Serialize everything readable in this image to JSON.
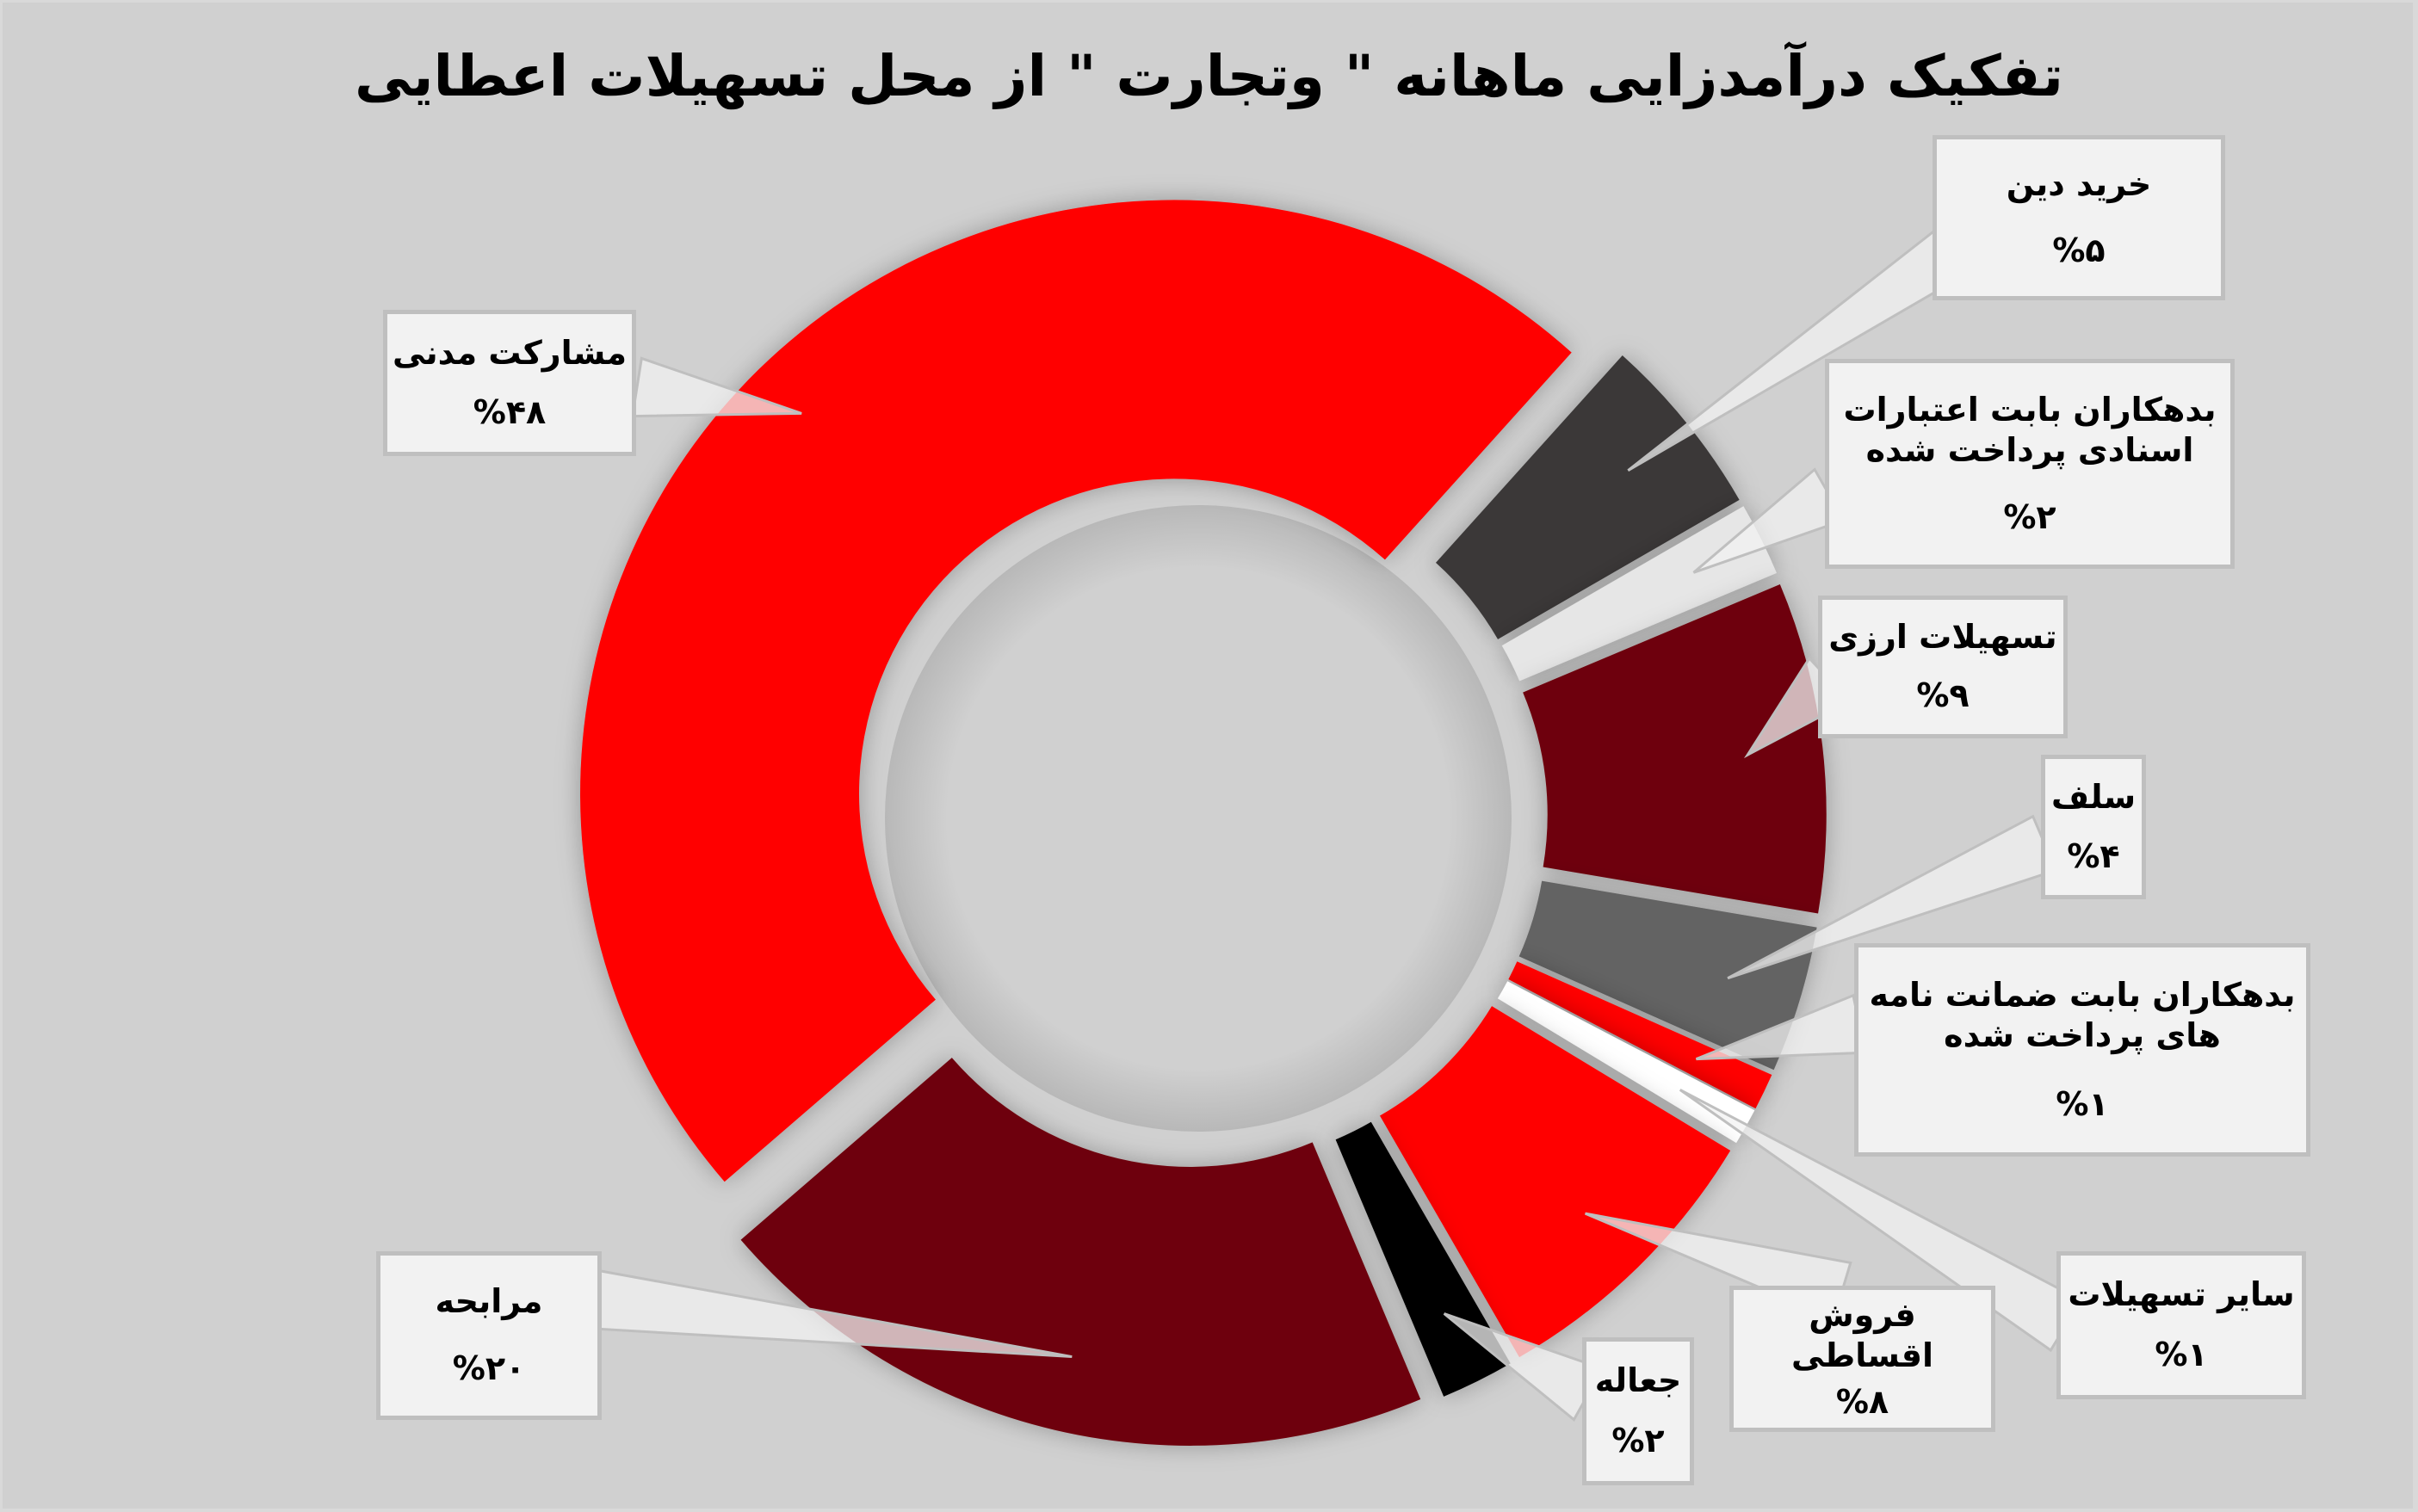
{
  "title": "تفکیک درآمدزایی ماهانه \" وتجارت \" از محل تسهیلات اعطایی",
  "labels": [
    {
      "name": "خرید دین",
      "pct": "%۵"
    },
    {
      "name": "بدهکاران بابت اعتبارات\nاسنادی پرداخت شده",
      "pct": "%۲"
    },
    {
      "name": "تسهیلات ارزی",
      "pct": "%۹"
    },
    {
      "name": "سلف",
      "pct": "%۴"
    },
    {
      "name": "بدهکاران بابت ضمانت نامه\nهای پرداخت شده",
      "pct": "%۱"
    },
    {
      "name": "سایر تسهیلات",
      "pct": "%۱"
    },
    {
      "name": "فروش اقساطی",
      "pct": "%۸"
    },
    {
      "name": "جعاله",
      "pct": "%۲"
    },
    {
      "name": "مرابحه",
      "pct": "%۲۰"
    },
    {
      "name": "مشارکت مدنی",
      "pct": "%۴۸"
    }
  ],
  "colors": {
    "background": "#d0d0d0",
    "label_box": "#f2f2f2"
  },
  "chart_data": {
    "type": "pie",
    "subtype": "donut (exploded)",
    "title": "تفکیک درآمدزایی ماهانه \" وتجارت \" از محل تسهیلات اعطایی",
    "categories": [
      "خرید دین",
      "بدهکاران بابت اعتبارات اسنادی پرداخت شده",
      "تسهیلات ارزی",
      "سلف",
      "بدهکاران بابت ضمانت نامه های پرداخت شده",
      "سایر تسهیلات",
      "فروش اقساطی",
      "جعاله",
      "مرابحه",
      "مشارکت مدنی"
    ],
    "values": [
      5,
      2,
      9,
      4,
      1,
      1,
      8,
      2,
      20,
      48
    ],
    "colors": [
      "#3a3938",
      "#e6e6e6",
      "#6e050b",
      "#646464",
      "#ff0000",
      "#ffffff",
      "#ff0000",
      "#000000",
      "#6e050b",
      "#ff0000"
    ],
    "value_format": "percent",
    "legend": "none (data labels in callout boxes)",
    "start_angle_deg": 42,
    "direction": "clockwise"
  }
}
